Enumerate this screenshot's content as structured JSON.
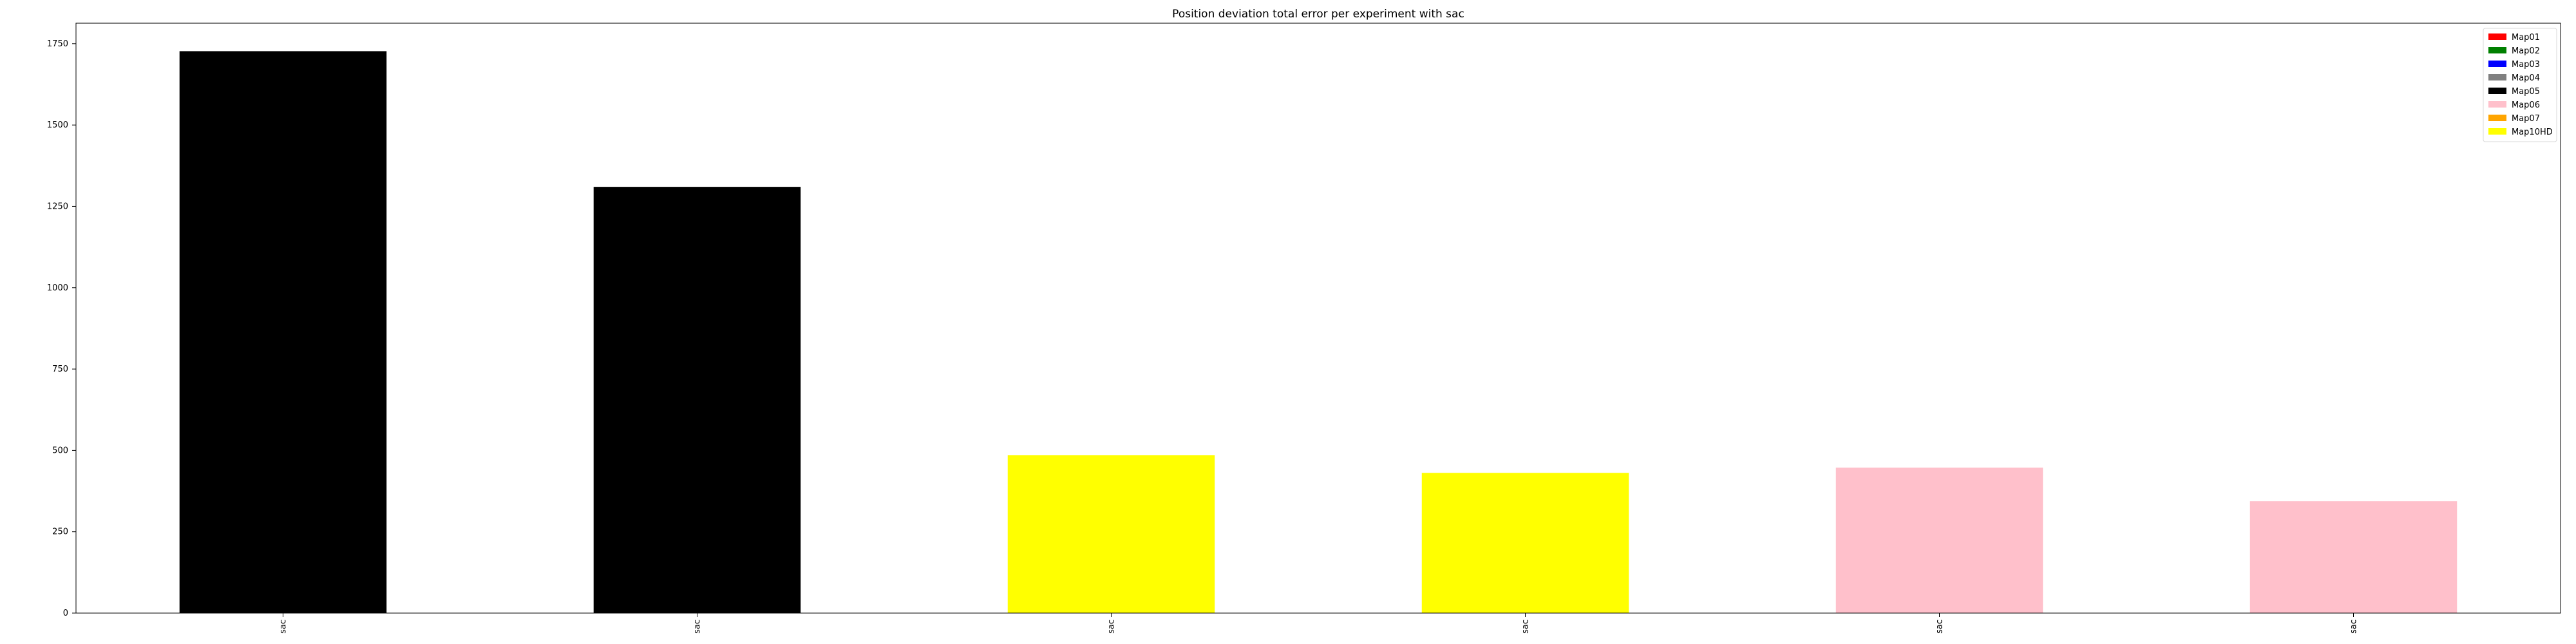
{
  "chart_data": {
    "type": "bar",
    "title": "Position deviation total error per experiment with sac",
    "xlabel": "",
    "ylabel": "",
    "categories": [
      "sac",
      "sac",
      "sac",
      "sac",
      "sac",
      "sac"
    ],
    "values": [
      1727,
      1310,
      485,
      431,
      447,
      344
    ],
    "bar_colors": [
      "#000000",
      "#000000",
      "#ffff00",
      "#ffff00",
      "#ffc0cb",
      "#ffc0cb"
    ],
    "ylim": [
      0,
      1813
    ],
    "yticks": [
      0,
      250,
      500,
      750,
      1000,
      1250,
      1500,
      1750
    ],
    "grid": false,
    "legend_position": "top-right",
    "legend": [
      {
        "label": "Map01",
        "color": "#ff0000"
      },
      {
        "label": "Map02",
        "color": "#008000"
      },
      {
        "label": "Map03",
        "color": "#0000ff"
      },
      {
        "label": "Map04",
        "color": "#808080"
      },
      {
        "label": "Map05",
        "color": "#000000"
      },
      {
        "label": "Map06",
        "color": "#ffc0cb"
      },
      {
        "label": "Map07",
        "color": "#ffa500"
      },
      {
        "label": "Map10HD",
        "color": "#ffff00"
      }
    ]
  }
}
